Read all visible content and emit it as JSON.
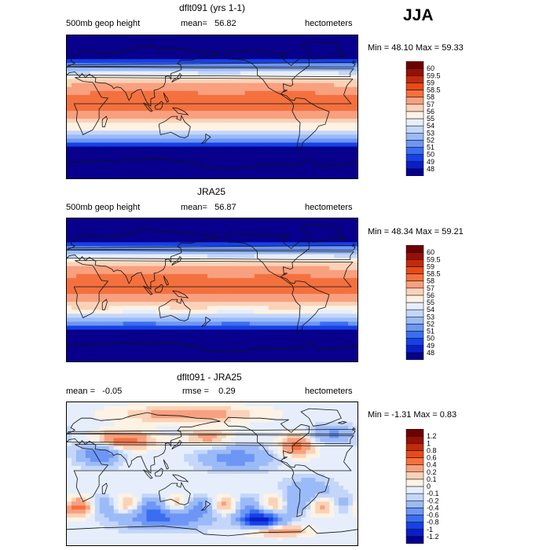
{
  "season": "JJA",
  "chart_data": [
    {
      "type": "heatmap",
      "title": "dflt091 (yrs 1-1)",
      "variable": "500mb geop height",
      "mean_label": "mean=",
      "mean": "56.82",
      "units": "hectometers",
      "min_label": "Min =",
      "min": "48.10",
      "max_label": "Max =",
      "max": "59.33",
      "levels": [
        "48",
        "49",
        "50",
        "51",
        "52",
        "53",
        "54",
        "55",
        "56",
        "57",
        "58",
        "58.5",
        "59",
        "59.5",
        "60"
      ],
      "colors": [
        "#08008c",
        "#0a1ec8",
        "#1641e6",
        "#3a6ef0",
        "#6d96f5",
        "#9bbaf8",
        "#c4d6fa",
        "#e6eefc",
        "#fdf2e4",
        "#fbd2b7",
        "#f8a07f",
        "#f4713f",
        "#e84b17",
        "#c22b0c",
        "#961004",
        "#6d0000"
      ]
    },
    {
      "type": "heatmap",
      "title": "JRA25",
      "variable": "500mb geop height",
      "mean_label": "mean=",
      "mean": "56.87",
      "units": "hectometers",
      "min_label": "Min =",
      "min": "48.34",
      "max_label": "Max =",
      "max": "59.21",
      "levels": [
        "48",
        "49",
        "50",
        "51",
        "52",
        "53",
        "54",
        "55",
        "56",
        "57",
        "58",
        "58.5",
        "59",
        "59.5",
        "60"
      ],
      "colors": [
        "#08008c",
        "#0a1ec8",
        "#1641e6",
        "#3a6ef0",
        "#6d96f5",
        "#9bbaf8",
        "#c4d6fa",
        "#e6eefc",
        "#fdf2e4",
        "#fbd2b7",
        "#f8a07f",
        "#f4713f",
        "#e84b17",
        "#c22b0c",
        "#961004",
        "#6d0000"
      ]
    },
    {
      "type": "heatmap",
      "title": "dflt091 - JRA25",
      "mean_label": "mean =",
      "mean": "-0.05",
      "rmse_label": "rmse =",
      "rmse": "0.29",
      "units": "hectometers",
      "min_label": "Min =",
      "min": "-1.31",
      "max_label": "Max =",
      "max": "0.83",
      "levels": [
        "-1.2",
        "-1",
        "-0.8",
        "-0.6",
        "-0.4",
        "-0.2",
        "-0.1",
        "0",
        "0.1",
        "0.2",
        "0.4",
        "0.6",
        "0.8",
        "1",
        "1.2"
      ],
      "colors": [
        "#08008c",
        "#0a1ec8",
        "#1641e6",
        "#3a6ef0",
        "#6d96f5",
        "#9bbaf8",
        "#c4d6fa",
        "#e6eefc",
        "#fdf2e4",
        "#fbd2b7",
        "#f8a07f",
        "#f4713f",
        "#e84b17",
        "#c22b0c",
        "#961004",
        "#6d0000"
      ]
    }
  ]
}
